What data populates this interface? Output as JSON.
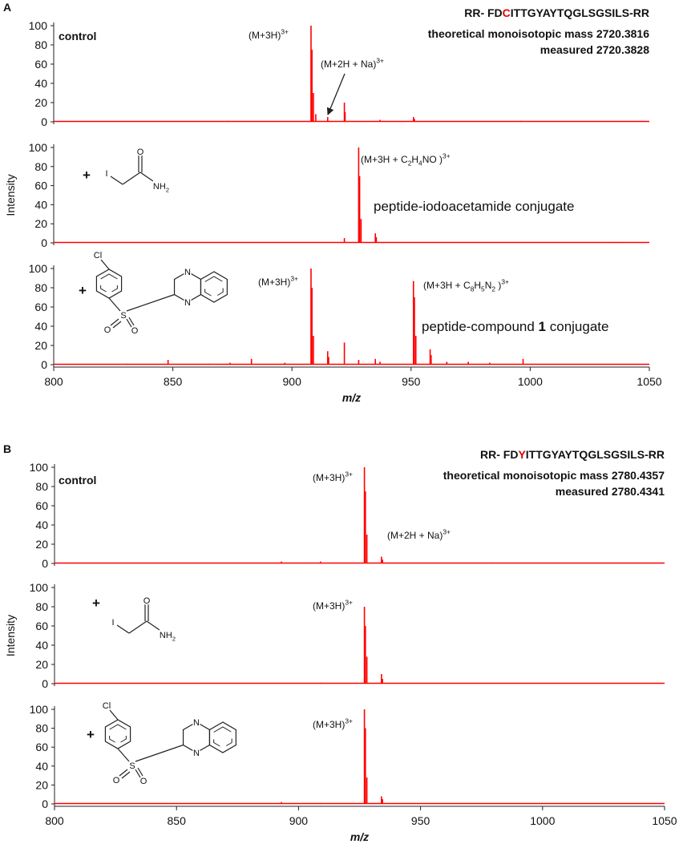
{
  "chart_data": [
    {
      "type": "spectrum",
      "panel_label": "A",
      "color": "#ff0000",
      "sequence": [
        {
          "text": "RR- FD"
        },
        {
          "text": "C",
          "style": "red"
        },
        {
          "text": "ITTGYAYTQGLSGSILS-RR"
        }
      ],
      "notes": [
        "theoretical monoisotopic mass 2720.3816",
        "measured 2720.3828"
      ],
      "annotations": [
        [
          {
            "text": "control",
            "style": "bold"
          }
        ],
        [
          {
            "text": "(M+3H)"
          },
          {
            "text": "3+",
            "style": "sup"
          }
        ],
        [
          {
            "text": "(M+2H + Na)"
          },
          {
            "text": "3+",
            "style": "sup"
          }
        ]
      ],
      "x": [
        873,
        908,
        908.4,
        909,
        910,
        915,
        922,
        922.3,
        937,
        951,
        951.4,
        996
      ],
      "values": [
        1,
        100,
        75,
        30,
        8,
        5,
        20,
        10,
        2,
        5,
        3,
        1
      ],
      "xlim": [
        800,
        1050
      ],
      "ylim": [
        0,
        100
      ],
      "yticks": [
        0,
        20,
        40,
        60,
        80,
        100
      ]
    },
    {
      "type": "spectrum",
      "color": "#ff0000",
      "ylabel": "Intensity",
      "structure": {
        "kind": "iodoacetamide",
        "plus": "+",
        "atoms": [
          [
            {
              "text": "I"
            }
          ],
          [
            {
              "text": "O"
            }
          ],
          [
            {
              "text": "NH"
            },
            {
              "text": "2",
              "style": "sub"
            }
          ]
        ]
      },
      "annotations": [
        [
          {
            "text": "(M+3H + C"
          },
          {
            "text": "2",
            "style": "sub"
          },
          {
            "text": "H"
          },
          {
            "text": "4",
            "style": "sub"
          },
          {
            "text": "NO )"
          },
          {
            "text": "3+",
            "style": "sup"
          }
        ],
        [
          {
            "text": "peptide-iodoacetamide conjugate"
          }
        ]
      ],
      "x": [
        922,
        928,
        928.4,
        929,
        935,
        935.4,
        1036
      ],
      "values": [
        5,
        100,
        70,
        25,
        10,
        6,
        1
      ],
      "xlim": [
        800,
        1050
      ],
      "ylim": [
        0,
        100
      ],
      "yticks": [
        0,
        20,
        40,
        60,
        80,
        100
      ]
    },
    {
      "type": "spectrum",
      "color": "#ff0000",
      "xlabel": "m/z",
      "structure": {
        "kind": "compound",
        "plus": "+",
        "atoms": [
          [
            {
              "text": "Cl"
            }
          ],
          [
            {
              "text": "S"
            }
          ],
          [
            {
              "text": "O"
            }
          ],
          [
            {
              "text": "O"
            }
          ],
          [
            {
              "text": "N"
            }
          ],
          [
            {
              "text": "N"
            }
          ]
        ]
      },
      "annotations": [
        [
          {
            "text": "(M+3H)"
          },
          {
            "text": "3+",
            "style": "sup"
          }
        ],
        [
          {
            "text": "(M+3H + C"
          },
          {
            "text": "8",
            "style": "sub"
          },
          {
            "text": "H"
          },
          {
            "text": "5",
            "style": "sub"
          },
          {
            "text": "N"
          },
          {
            "text": "2",
            "style": "sub"
          },
          {
            "text": " )"
          },
          {
            "text": "3+",
            "style": "sup"
          }
        ],
        [
          {
            "text": "peptide-compound "
          },
          {
            "text": "1",
            "style": "bold"
          },
          {
            "text": " conjugate"
          }
        ]
      ],
      "x": [
        831,
        848,
        865,
        874,
        883,
        897,
        908,
        908.4,
        909,
        915,
        915.4,
        922,
        928,
        935,
        937,
        951,
        951.4,
        952,
        958,
        958.4,
        965,
        974,
        983,
        997
      ],
      "values": [
        1,
        5,
        1,
        2,
        6,
        2,
        100,
        80,
        30,
        14,
        8,
        23,
        5,
        6,
        3,
        87,
        70,
        30,
        16,
        10,
        3,
        3,
        2,
        6
      ],
      "xlim": [
        800,
        1050
      ],
      "ylim": [
        0,
        100
      ],
      "yticks": [
        0,
        20,
        40,
        60,
        80,
        100
      ],
      "xticks": [
        800,
        850,
        900,
        950,
        1000,
        1050
      ]
    },
    {
      "type": "spectrum",
      "panel_label": "B",
      "color": "#ff0000",
      "sequence": [
        {
          "text": "RR- FD"
        },
        {
          "text": "Y",
          "style": "red"
        },
        {
          "text": "ITTGYAYTQGLSGSILS-RR"
        }
      ],
      "notes": [
        "theoretical monoisotopic mass 2780.4357",
        "measured 2780.4341"
      ],
      "annotations": [
        [
          {
            "text": "control",
            "style": "bold"
          }
        ],
        [
          {
            "text": "(M+3H)"
          },
          {
            "text": "3+",
            "style": "sup"
          }
        ],
        [
          {
            "text": "(M+2H + Na)"
          },
          {
            "text": "3+",
            "style": "sup"
          }
        ]
      ],
      "x": [
        893,
        909,
        927,
        927.4,
        928,
        934,
        934.4,
        979
      ],
      "values": [
        2,
        2,
        100,
        75,
        30,
        7,
        4,
        1
      ],
      "xlim": [
        800,
        1050
      ],
      "ylim": [
        0,
        100
      ],
      "yticks": [
        0,
        20,
        40,
        60,
        80,
        100
      ]
    },
    {
      "type": "spectrum",
      "color": "#ff0000",
      "ylabel": "Intensity",
      "structure": {
        "kind": "iodoacetamide",
        "plus": "+",
        "atoms": [
          [
            {
              "text": "I"
            }
          ],
          [
            {
              "text": "O"
            }
          ],
          [
            {
              "text": "NH"
            },
            {
              "text": "2",
              "style": "sub"
            }
          ]
        ]
      },
      "annotations": [
        [
          {
            "text": "(M+3H)"
          },
          {
            "text": "3+",
            "style": "sup"
          }
        ]
      ],
      "x": [
        909,
        927,
        927.4,
        928,
        934,
        934.4
      ],
      "values": [
        1,
        80,
        60,
        28,
        10,
        5
      ],
      "xlim": [
        800,
        1050
      ],
      "ylim": [
        0,
        100
      ],
      "yticks": [
        0,
        20,
        40,
        60,
        80,
        100
      ]
    },
    {
      "type": "spectrum",
      "color": "#ff0000",
      "xlabel": "m/z",
      "structure": {
        "kind": "compound",
        "plus": "+",
        "atoms": [
          [
            {
              "text": "Cl"
            }
          ],
          [
            {
              "text": "S"
            }
          ],
          [
            {
              "text": "O"
            }
          ],
          [
            {
              "text": "O"
            }
          ],
          [
            {
              "text": "N"
            }
          ],
          [
            {
              "text": "N"
            }
          ]
        ]
      },
      "annotations": [
        [
          {
            "text": "(M+3H)"
          },
          {
            "text": "3+",
            "style": "sup"
          }
        ]
      ],
      "x": [
        893,
        909,
        927,
        927.4,
        928,
        934,
        934.4
      ],
      "values": [
        2,
        1,
        100,
        80,
        28,
        8,
        5
      ],
      "xlim": [
        800,
        1050
      ],
      "ylim": [
        0,
        100
      ],
      "yticks": [
        0,
        20,
        40,
        60,
        80,
        100
      ],
      "xticks": [
        800,
        850,
        900,
        950,
        1000,
        1050
      ]
    }
  ]
}
